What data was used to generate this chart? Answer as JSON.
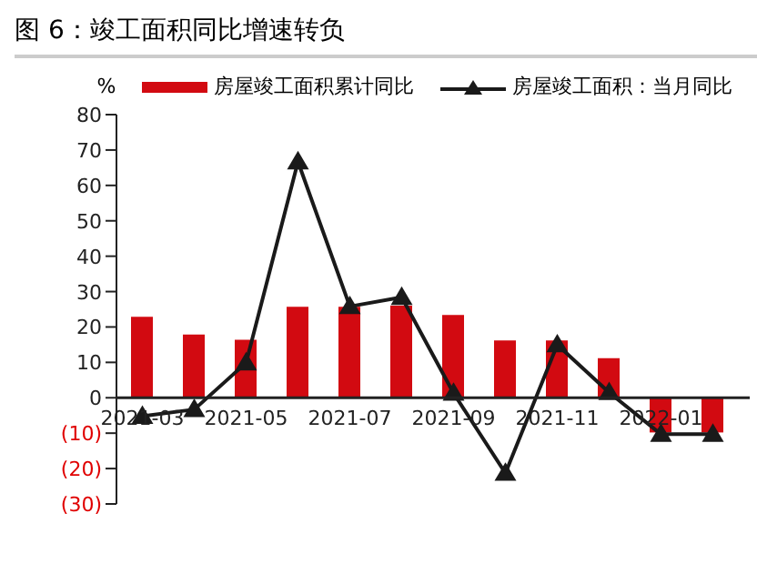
{
  "chart_data": {
    "type": "bar",
    "title": "图 6：竣工面积同比增速转负",
    "ylabel": "%",
    "categories": [
      "2021-03",
      null,
      "2021-05",
      null,
      "2021-07",
      null,
      "2021-09",
      null,
      "2021-11",
      null,
      "2022-01",
      null
    ],
    "series": [
      {
        "name": "房屋竣工面积累计同比",
        "color": "#d20a11",
        "values": [
          22.9,
          17.9,
          16.4,
          25.7,
          25.7,
          26.0,
          23.4,
          16.2,
          16.2,
          11.2,
          -9.8,
          -9.8
        ]
      },
      {
        "name": "房屋竣工面积：当月同比",
        "type": "line",
        "color": "#1a1a1a",
        "marker": "triangle",
        "values": [
          -5.2,
          -3.3,
          9.9,
          66.7,
          25.8,
          28.4,
          1.3,
          -21.3,
          15.0,
          1.5,
          -10.3,
          -10.3
        ]
      }
    ],
    "ylim": [
      -30,
      80
    ],
    "yticks": [
      {
        "value": -30,
        "label": "(30)"
      },
      {
        "value": -20,
        "label": "(20)"
      },
      {
        "value": -10,
        "label": "(10)"
      },
      0,
      10,
      20,
      30,
      40,
      50,
      60,
      70,
      80
    ],
    "grid": false,
    "legend": "top"
  }
}
